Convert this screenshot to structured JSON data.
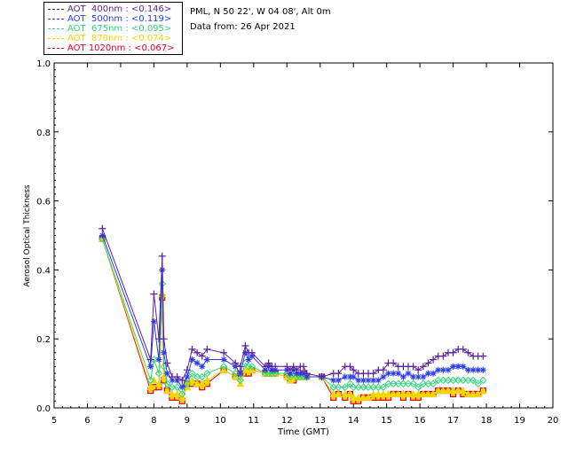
{
  "info": {
    "line1": "PML, N 50 22', W 04 08', Alt 0m",
    "line2": "Data from: 26 Apr 2021"
  },
  "legend": [
    {
      "label": "AOT  400nm : <0.146>",
      "color": "#5b1f9e"
    },
    {
      "label": "AOT  500nm : <0.119>",
      "color": "#2a3cf0"
    },
    {
      "label": "AOT  675nm : <0.095>",
      "color": "#2ed67a"
    },
    {
      "label": "AOT  870nm : <0.074>",
      "color": "#f2d600"
    },
    {
      "label": "AOT 1020nm : <0.067>",
      "color": "#e0002a"
    }
  ],
  "chart_data": {
    "type": "scatter",
    "xlabel": "Time (GMT)",
    "ylabel": "Aerosol Optical Thickness",
    "xlim": [
      5,
      20
    ],
    "ylim": [
      0.0,
      1.0
    ],
    "xticks": [
      5,
      6,
      7,
      8,
      9,
      10,
      11,
      12,
      13,
      14,
      15,
      16,
      17,
      18,
      19,
      20
    ],
    "yticks": [
      0.0,
      0.2,
      0.4,
      0.6,
      0.8,
      1.0
    ],
    "x": [
      6.45,
      7.9,
      8.0,
      8.15,
      8.25,
      8.3,
      8.4,
      8.55,
      8.7,
      8.85,
      9.0,
      9.15,
      9.3,
      9.45,
      9.6,
      10.1,
      10.45,
      10.6,
      10.75,
      10.85,
      10.95,
      11.35,
      11.45,
      11.55,
      11.65,
      12.0,
      12.1,
      12.2,
      12.3,
      12.4,
      12.5,
      12.6,
      13.05,
      13.4,
      13.55,
      13.75,
      13.9,
      14.0,
      14.15,
      14.3,
      14.45,
      14.6,
      14.75,
      14.9,
      15.05,
      15.2,
      15.35,
      15.5,
      15.65,
      15.8,
      15.95,
      16.1,
      16.25,
      16.4,
      16.55,
      16.7,
      16.85,
      17.0,
      17.15,
      17.3,
      17.45,
      17.6,
      17.75,
      17.9
    ],
    "series": [
      {
        "name": "AOT  400nm",
        "color": "#5b1f9e",
        "marker": "plus",
        "values": [
          0.52,
          0.14,
          0.33,
          0.2,
          0.44,
          0.2,
          0.13,
          0.09,
          0.09,
          0.08,
          0.11,
          0.17,
          0.16,
          0.15,
          0.17,
          0.16,
          0.13,
          0.12,
          0.18,
          0.16,
          0.16,
          0.12,
          0.13,
          0.12,
          0.12,
          0.12,
          0.11,
          0.12,
          0.11,
          0.12,
          0.12,
          0.1,
          0.09,
          0.1,
          0.1,
          0.12,
          0.12,
          0.11,
          0.1,
          0.1,
          0.1,
          0.1,
          0.11,
          0.11,
          0.13,
          0.13,
          0.12,
          0.12,
          0.12,
          0.12,
          0.11,
          0.12,
          0.13,
          0.14,
          0.15,
          0.15,
          0.16,
          0.16,
          0.17,
          0.17,
          0.16,
          0.15,
          0.15,
          0.15
        ]
      },
      {
        "name": "AOT  500nm",
        "color": "#2a3cf0",
        "marker": "star",
        "values": [
          0.5,
          0.12,
          0.25,
          0.14,
          0.4,
          0.16,
          0.1,
          0.08,
          0.08,
          0.06,
          0.09,
          0.14,
          0.13,
          0.12,
          0.14,
          0.14,
          0.12,
          0.1,
          0.16,
          0.14,
          0.15,
          0.11,
          0.12,
          0.11,
          0.11,
          0.11,
          0.1,
          0.11,
          0.1,
          0.1,
          0.1,
          0.09,
          0.09,
          0.08,
          0.08,
          0.09,
          0.09,
          0.09,
          0.08,
          0.08,
          0.08,
          0.08,
          0.08,
          0.09,
          0.1,
          0.1,
          0.1,
          0.09,
          0.1,
          0.09,
          0.09,
          0.09,
          0.1,
          0.1,
          0.11,
          0.11,
          0.11,
          0.12,
          0.12,
          0.12,
          0.11,
          0.11,
          0.11,
          0.11
        ]
      },
      {
        "name": "AOT  675nm",
        "color": "#2ed67a",
        "marker": "diamond",
        "values": [
          0.49,
          0.08,
          0.14,
          0.1,
          0.36,
          0.12,
          0.07,
          0.06,
          0.06,
          0.04,
          0.07,
          0.1,
          0.09,
          0.09,
          0.1,
          0.12,
          0.1,
          0.08,
          0.13,
          0.12,
          0.12,
          0.1,
          0.1,
          0.1,
          0.1,
          0.1,
          0.09,
          0.1,
          0.09,
          0.09,
          0.09,
          0.09,
          0.09,
          0.06,
          0.06,
          0.06,
          0.07,
          0.06,
          0.06,
          0.06,
          0.06,
          0.06,
          0.06,
          0.06,
          0.07,
          0.07,
          0.07,
          0.07,
          0.07,
          0.07,
          0.06,
          0.07,
          0.07,
          0.07,
          0.08,
          0.08,
          0.08,
          0.08,
          0.08,
          0.08,
          0.08,
          0.08,
          0.07,
          0.08
        ]
      },
      {
        "name": "AOT  870nm",
        "color": "#f2d600",
        "marker": "triangle",
        "values": [
          0.49,
          0.06,
          0.08,
          0.07,
          0.33,
          0.09,
          0.05,
          0.04,
          0.04,
          0.03,
          0.06,
          0.08,
          0.07,
          0.07,
          0.08,
          0.11,
          0.09,
          0.07,
          0.11,
          0.11,
          0.11,
          0.1,
          0.1,
          0.1,
          0.1,
          0.09,
          0.08,
          0.09,
          0.09,
          0.09,
          0.09,
          0.09,
          0.09,
          0.04,
          0.04,
          0.04,
          0.04,
          0.03,
          0.03,
          0.03,
          0.03,
          0.04,
          0.04,
          0.04,
          0.04,
          0.04,
          0.04,
          0.04,
          0.04,
          0.04,
          0.04,
          0.04,
          0.04,
          0.04,
          0.05,
          0.05,
          0.05,
          0.05,
          0.05,
          0.05,
          0.04,
          0.04,
          0.04,
          0.05
        ]
      },
      {
        "name": "AOT 1020nm",
        "color": "#e0002a",
        "marker": "square",
        "values": [
          0.49,
          0.05,
          0.06,
          0.06,
          0.32,
          0.08,
          0.05,
          0.03,
          0.03,
          0.02,
          0.07,
          0.07,
          0.07,
          0.06,
          0.07,
          0.11,
          0.09,
          0.1,
          0.1,
          0.1,
          0.11,
          0.1,
          0.1,
          0.1,
          0.1,
          0.09,
          0.08,
          0.08,
          0.09,
          0.09,
          0.1,
          0.09,
          0.09,
          0.03,
          0.04,
          0.03,
          0.04,
          0.02,
          0.02,
          0.03,
          0.03,
          0.03,
          0.03,
          0.03,
          0.03,
          0.04,
          0.04,
          0.03,
          0.04,
          0.03,
          0.03,
          0.04,
          0.04,
          0.04,
          0.05,
          0.05,
          0.05,
          0.04,
          0.05,
          0.04,
          0.04,
          0.04,
          0.04,
          0.05
        ]
      }
    ],
    "grid": false,
    "legend_position": "top-left"
  }
}
